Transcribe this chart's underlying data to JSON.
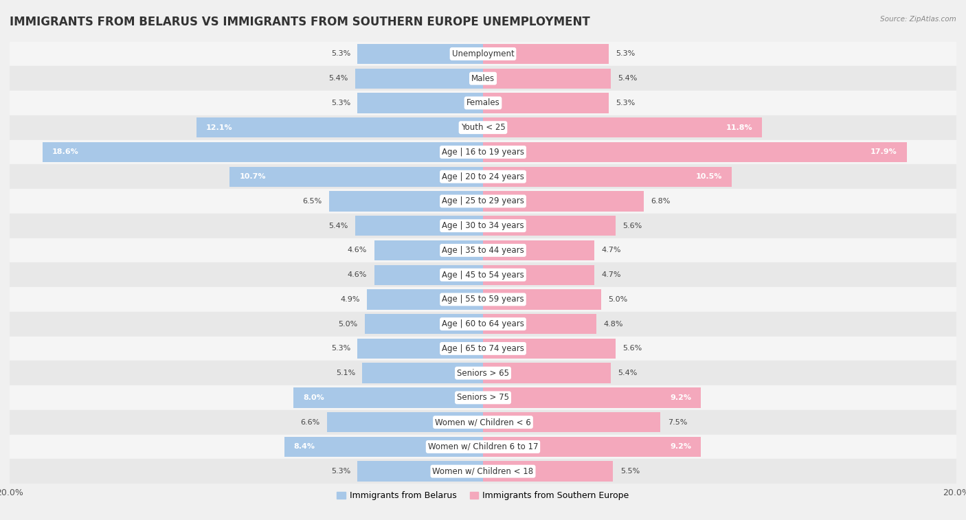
{
  "title": "IMMIGRANTS FROM BELARUS VS IMMIGRANTS FROM SOUTHERN EUROPE UNEMPLOYMENT",
  "source": "Source: ZipAtlas.com",
  "categories": [
    "Unemployment",
    "Males",
    "Females",
    "Youth < 25",
    "Age | 16 to 19 years",
    "Age | 20 to 24 years",
    "Age | 25 to 29 years",
    "Age | 30 to 34 years",
    "Age | 35 to 44 years",
    "Age | 45 to 54 years",
    "Age | 55 to 59 years",
    "Age | 60 to 64 years",
    "Age | 65 to 74 years",
    "Seniors > 65",
    "Seniors > 75",
    "Women w/ Children < 6",
    "Women w/ Children 6 to 17",
    "Women w/ Children < 18"
  ],
  "belarus_values": [
    5.3,
    5.4,
    5.3,
    12.1,
    18.6,
    10.7,
    6.5,
    5.4,
    4.6,
    4.6,
    4.9,
    5.0,
    5.3,
    5.1,
    8.0,
    6.6,
    8.4,
    5.3
  ],
  "southern_europe_values": [
    5.3,
    5.4,
    5.3,
    11.8,
    17.9,
    10.5,
    6.8,
    5.6,
    4.7,
    4.7,
    5.0,
    4.8,
    5.6,
    5.4,
    9.2,
    7.5,
    9.2,
    5.5
  ],
  "belarus_color": "#a8c8e8",
  "southern_europe_color": "#f4a8bc",
  "row_color_even": "#f5f5f5",
  "row_color_odd": "#e8e8e8",
  "background_color": "#f0f0f0",
  "axis_limit": 20.0,
  "legend_belarus": "Immigrants from Belarus",
  "legend_southern_europe": "Immigrants from Southern Europe",
  "title_fontsize": 12,
  "label_fontsize": 8.5,
  "value_fontsize": 8,
  "bar_height": 0.82
}
